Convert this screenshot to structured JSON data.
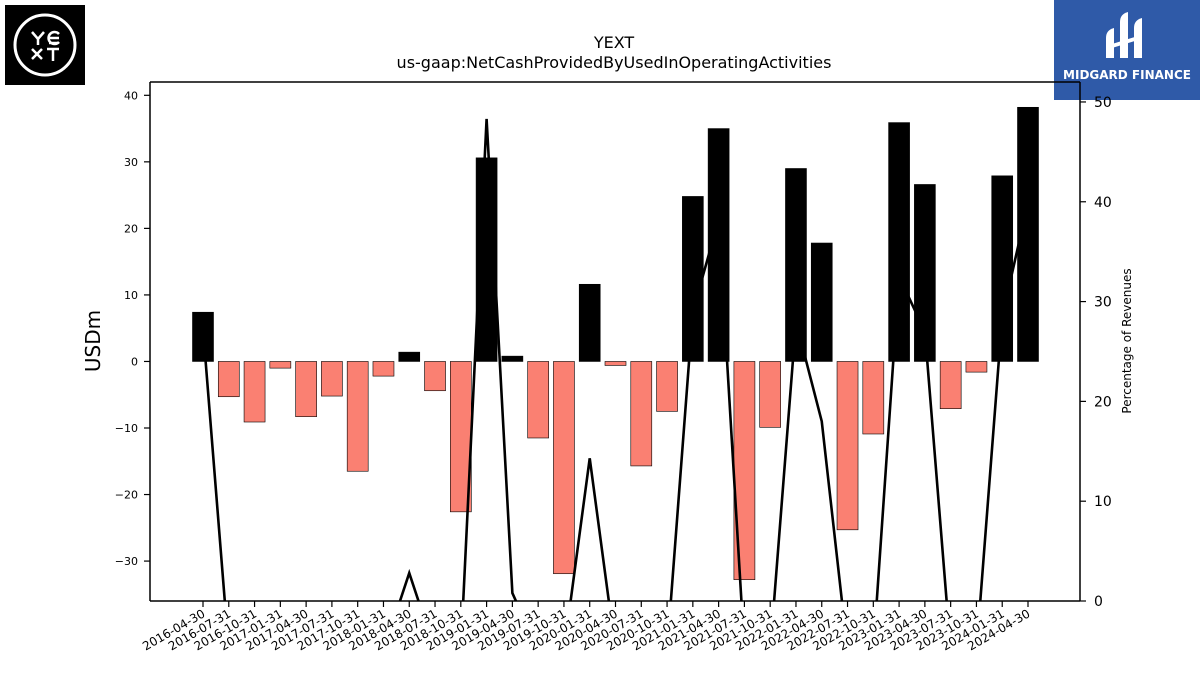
{
  "brand": {
    "left_logo_text": "YEXT",
    "right_logo_text": "MIDGARD FINANCE"
  },
  "colors": {
    "positive_bar": "#000000",
    "negative_bar": "#fa8072",
    "line": "#000000",
    "logo_right_bg": "#2f5aa8"
  },
  "chart_data": {
    "type": "bar",
    "title": "YEXT",
    "subtitle": "us-gaap:NetCashProvidedByUsedInOperatingActivities",
    "ylabel": "USDm",
    "y2label": "Percentage of Revenues",
    "ylim": [
      -36,
      42
    ],
    "y2lim": [
      0,
      52
    ],
    "yticks": [
      -30,
      -20,
      -10,
      0,
      10,
      20,
      30,
      40
    ],
    "y2ticks": [
      0,
      10,
      20,
      30,
      40,
      50
    ],
    "categories": [
      "2016-04-30",
      "2016-07-31",
      "2016-10-31",
      "2017-01-31",
      "2017-04-30",
      "2017-07-31",
      "2017-10-31",
      "2018-01-31",
      "2018-04-30",
      "2018-07-31",
      "2018-10-31",
      "2019-01-31",
      "2019-04-30",
      "2019-07-31",
      "2019-10-31",
      "2020-01-31",
      "2020-04-30",
      "2020-07-31",
      "2020-10-31",
      "2021-01-31",
      "2021-04-30",
      "2021-07-31",
      "2021-10-31",
      "2022-01-31",
      "2022-04-30",
      "2022-07-31",
      "2022-10-31",
      "2023-01-31",
      "2023-04-30",
      "2023-07-31",
      "2023-10-31",
      "2024-01-31",
      "2024-04-30"
    ],
    "series": [
      {
        "type": "bar",
        "values": [
          7.4,
          -5.3,
          -9.1,
          -1.0,
          -8.3,
          -5.2,
          -16.5,
          -2.2,
          1.4,
          -4.4,
          -22.6,
          30.6,
          0.8,
          -11.5,
          -31.9,
          11.6,
          -0.6,
          -15.7,
          -7.5,
          24.8,
          35.0,
          -32.8,
          -9.9,
          29.0,
          17.8,
          -25.3,
          -10.9,
          35.9,
          26.6,
          -7.1,
          -1.6,
          27.9,
          38.2
        ]
      },
      {
        "type": "line",
        "axis": "secondary",
        "values": [
          27.3,
          -5,
          -5,
          -5,
          -5,
          -5,
          -5,
          -5,
          2.8,
          -5,
          -5,
          48.3,
          0.8,
          -5,
          -5,
          14.3,
          -5,
          -5,
          -5,
          29.0,
          38.2,
          -5,
          -5,
          28.0,
          18.0,
          -5,
          -5,
          32.5,
          27.0,
          -5,
          -5,
          28.5,
          39.9
        ]
      }
    ]
  }
}
